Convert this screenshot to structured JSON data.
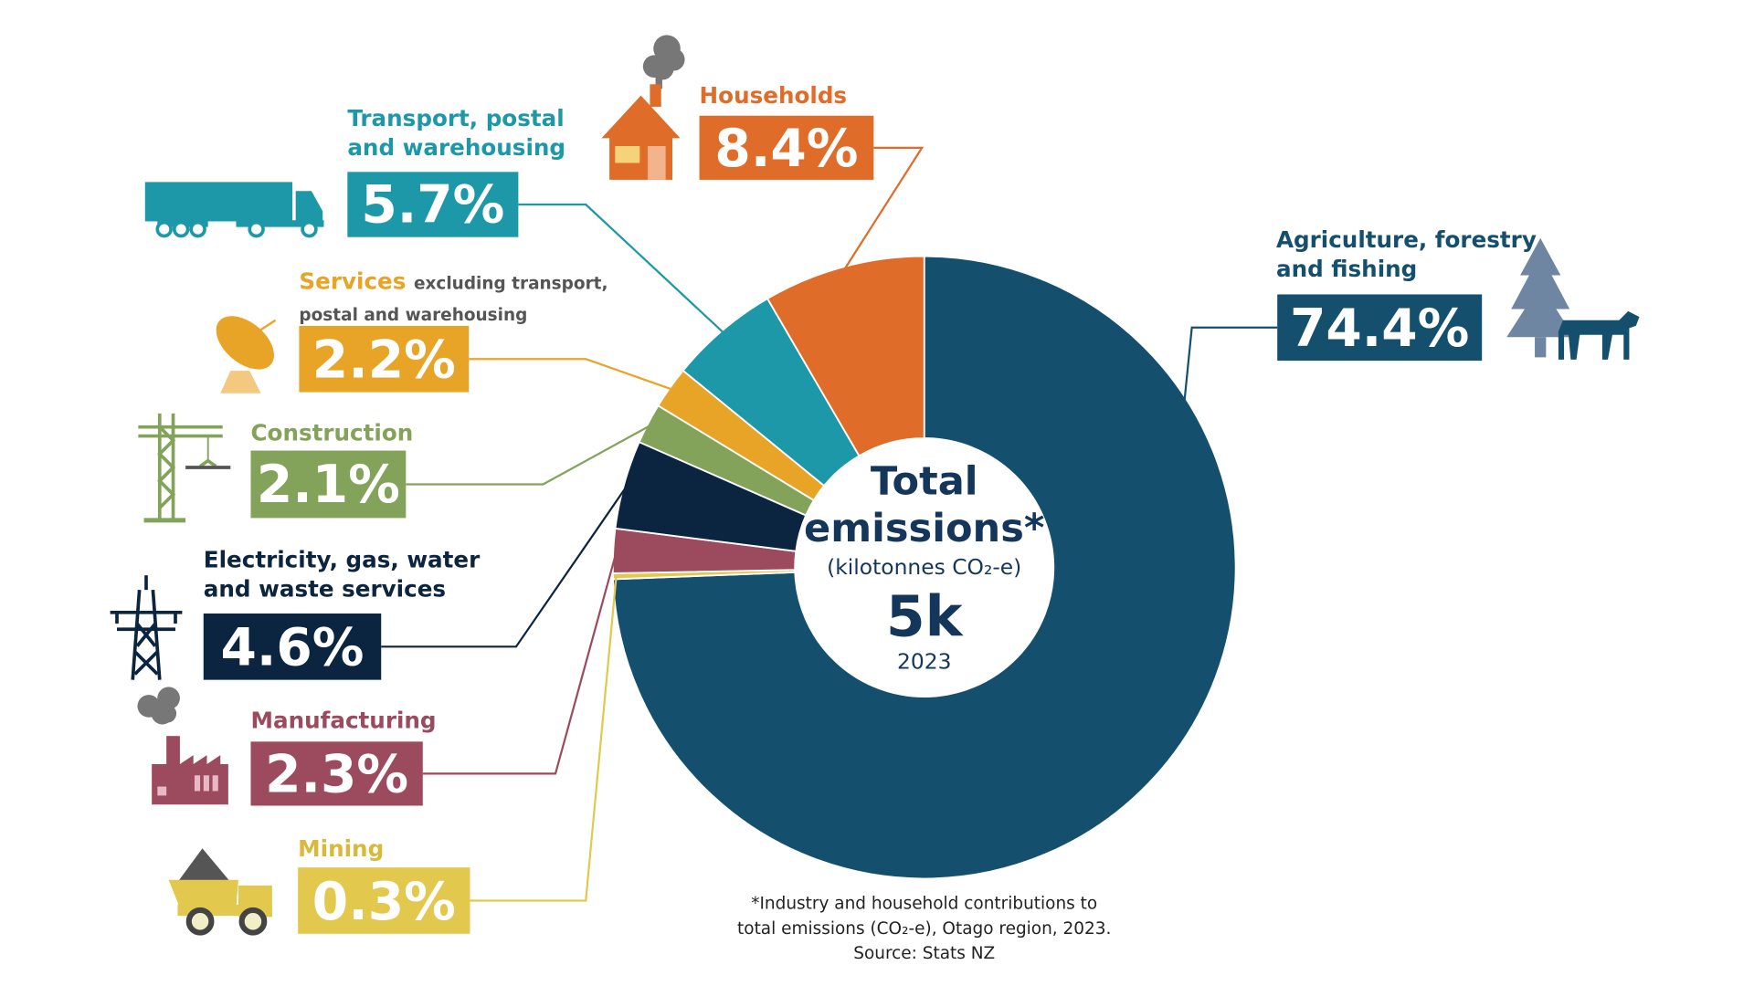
{
  "chart_data": {
    "type": "pie",
    "categories": [
      "Agriculture, forestry and fishing",
      "Mining",
      "Manufacturing",
      "Electricity, gas, water and waste services",
      "Construction",
      "Services",
      "Transport, postal and warehousing",
      "Households"
    ],
    "values": [
      74.4,
      0.3,
      2.3,
      4.6,
      2.1,
      2.2,
      5.7,
      8.4
    ],
    "value_labels": [
      "74.4%",
      "0.3%",
      "2.3%",
      "4.6%",
      "2.1%",
      "2.2%",
      "5.7%",
      "8.4%"
    ],
    "colors": [
      "#14506e",
      "#e2c94e",
      "#9c4a5e",
      "#0b2540",
      "#84a35a",
      "#e8a427",
      "#1c98a8",
      "#e06c2a"
    ],
    "services_note": "excluding transport, postal and warehousing",
    "center_title": "Total emissions*",
    "center_subtitle": "(kilotonnes CO₂-e)",
    "center_value": "5k",
    "center_year": "2023",
    "footnote": [
      "*Industry and household contributions to",
      "total emissions (CO₂-e), Otago region, 2023.",
      "Source: Stats NZ"
    ]
  }
}
